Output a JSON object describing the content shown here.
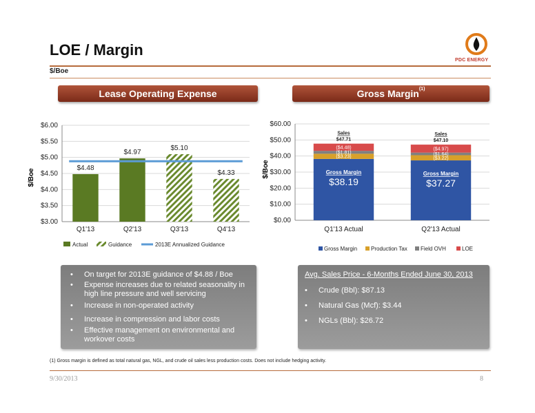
{
  "header": {
    "title": "LOE / Margin",
    "subtitle": "$/Boe",
    "logo_text": "PDC ENERGY"
  },
  "banners": {
    "left": "Lease Operating Expense",
    "right": "Gross Margin",
    "right_note": "(1)"
  },
  "colors": {
    "actual": "#5a7a23",
    "guidance_hatch": "#6a8a2e",
    "guidance_line": "#5b9bd5",
    "gross_margin": "#2f55a4",
    "production_tax": "#d8a02a",
    "field_ovh": "#808080",
    "loe": "#d84b4b",
    "banner": "#8b3a22"
  },
  "chart_data": [
    {
      "type": "bar",
      "ylabel": "$/Boe",
      "ylim": [
        3.0,
        6.0
      ],
      "yticks": [
        "$3.00",
        "$3.50",
        "$4.00",
        "$4.50",
        "$5.00",
        "$5.50",
        "$6.00"
      ],
      "ytick_values": [
        3.0,
        3.5,
        4.0,
        4.5,
        5.0,
        5.5,
        6.0
      ],
      "categories": [
        "Q1'13",
        "Q2'13",
        "Q3'13",
        "Q4'13"
      ],
      "values": [
        4.48,
        4.97,
        5.1,
        4.33
      ],
      "value_labels": [
        "$4.48",
        "$4.97",
        "$5.10",
        "$4.33"
      ],
      "bar_kind": [
        "Actual",
        "Actual",
        "Guidance",
        "Guidance"
      ],
      "reference_line": {
        "name": "2013E Annualized Guidance",
        "value": 4.88
      },
      "legend": [
        "Actual",
        "Guidance",
        "2013E Annualized Guidance"
      ],
      "legend_position": "bottom"
    },
    {
      "type": "bar",
      "stacked": true,
      "ylabel": "$/Boe",
      "ylim": [
        0,
        60
      ],
      "yticks": [
        "$0.00",
        "$10.00",
        "$20.00",
        "$30.00",
        "$40.00",
        "$50.00",
        "$60.00"
      ],
      "ytick_values": [
        0,
        10,
        20,
        30,
        40,
        50,
        60
      ],
      "categories": [
        "Q1'13 Actual",
        "Q2'13 Actual"
      ],
      "series": [
        {
          "name": "Gross Margin",
          "values": [
            38.19,
            37.27
          ],
          "labels": [
            "$38.19",
            "$37.27"
          ]
        },
        {
          "name": "Production Tax",
          "values": [
            3.23,
            3.22
          ],
          "labels": [
            "($3.23)",
            "($3.22)"
          ]
        },
        {
          "name": "Field OVH",
          "values": [
            1.81,
            1.64
          ],
          "labels": [
            "($1.81)",
            "($1.64)"
          ]
        },
        {
          "name": "LOE",
          "values": [
            4.48,
            4.97
          ],
          "labels": [
            "($4.48)",
            "($4.97)"
          ]
        }
      ],
      "inner_label": "Gross Margin",
      "totals": [
        {
          "label": "Sales",
          "value": "$47.71"
        },
        {
          "label": "Sales",
          "value": "$47.10"
        }
      ],
      "legend_position": "bottom"
    }
  ],
  "left_bullets": [
    "On target for 2013E guidance of $4.88 / Boe",
    "Expense increases due to related seasonality in high line pressure and well servicing",
    "Increase in non-operated activity",
    "Increase in compression and labor costs",
    "Effective management on environmental and workover costs"
  ],
  "right_box": {
    "heading": "Avg. Sales Price - 6-Months Ended June 30, 2013",
    "items": [
      "Crude (Bbl): $87.13",
      "Natural Gas (Mcf): $3.44",
      "NGLs (Bbl): $26.72"
    ]
  },
  "footnote": "(1)    Gross margin is defined as total natural gas, NGL, and crude oil sales less production costs. Does not include hedging activity.",
  "footer": {
    "date": "9/30/2013",
    "page": "8"
  }
}
